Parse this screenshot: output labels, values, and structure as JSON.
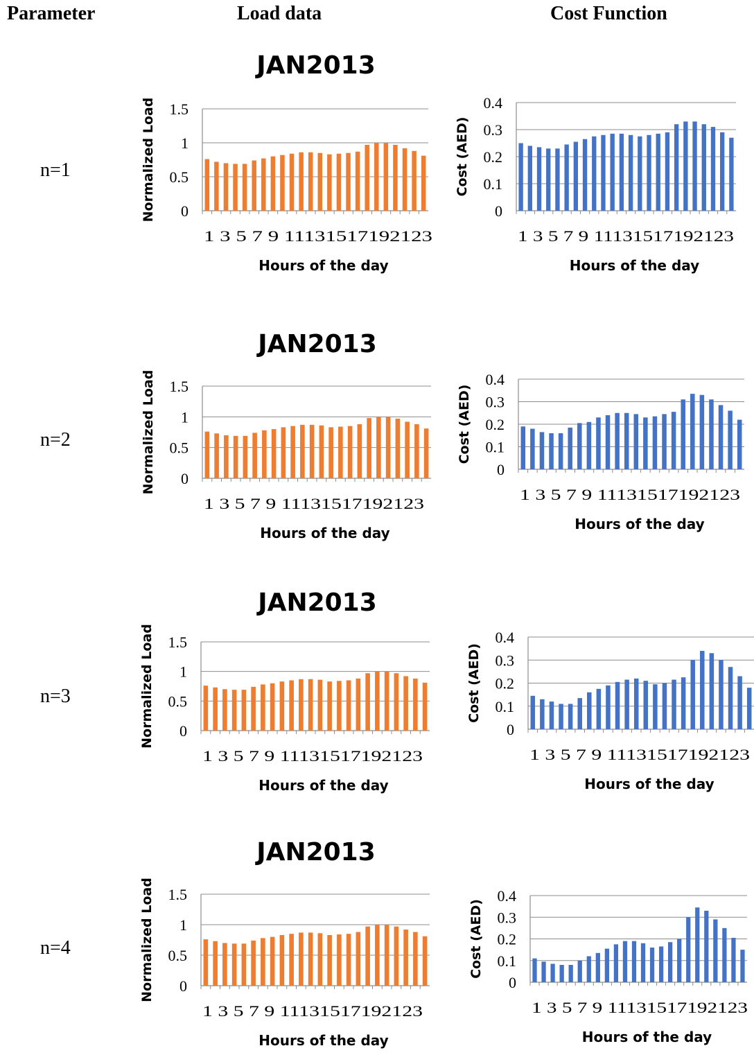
{
  "headers": {
    "parameter": "Parameter",
    "load": "Load data",
    "cost": "Cost Function"
  },
  "rows": [
    {
      "param": "n=1",
      "title": "JAN2013"
    },
    {
      "param": "n=2",
      "title": "JAN2013"
    },
    {
      "param": "n=3",
      "title": "JAN2013"
    },
    {
      "param": "n=4",
      "title": "JAN2013"
    }
  ],
  "colors": {
    "load_bar": "#ED7D31",
    "cost_bar": "#4472C4",
    "grid": "#8C8C8C"
  },
  "chart_data": [
    {
      "type": "bar",
      "name": "load-n1",
      "categories": [
        "1",
        "2",
        "3",
        "4",
        "5",
        "6",
        "7",
        "8",
        "9",
        "10",
        "11",
        "12",
        "13",
        "14",
        "15",
        "16",
        "17",
        "18",
        "19",
        "20",
        "21",
        "22",
        "23",
        "24"
      ],
      "tick_labels": [
        "1",
        "3",
        "5",
        "7",
        "9",
        "11",
        "13",
        "15",
        "17",
        "19",
        "21",
        "23"
      ],
      "values": [
        0.76,
        0.72,
        0.7,
        0.69,
        0.69,
        0.74,
        0.77,
        0.8,
        0.82,
        0.84,
        0.86,
        0.86,
        0.85,
        0.83,
        0.84,
        0.85,
        0.87,
        0.97,
        1.0,
        1.0,
        0.97,
        0.92,
        0.88,
        0.81
      ],
      "xlabel": "Hours of the day",
      "ylabel": "Normalized Load",
      "ylim": [
        0,
        1.5
      ],
      "yticks": [
        "0",
        "0.5",
        "1",
        "1.5"
      ],
      "grid": true
    },
    {
      "type": "bar",
      "name": "cost-n1",
      "categories": [
        "1",
        "2",
        "3",
        "4",
        "5",
        "6",
        "7",
        "8",
        "9",
        "10",
        "11",
        "12",
        "13",
        "14",
        "15",
        "16",
        "17",
        "18",
        "19",
        "20",
        "21",
        "22",
        "23",
        "24"
      ],
      "tick_labels": [
        "1",
        "3",
        "5",
        "7",
        "9",
        "11",
        "13",
        "15",
        "17",
        "19",
        "21",
        "23"
      ],
      "values": [
        0.25,
        0.24,
        0.235,
        0.23,
        0.23,
        0.245,
        0.255,
        0.265,
        0.275,
        0.28,
        0.285,
        0.285,
        0.28,
        0.275,
        0.28,
        0.285,
        0.29,
        0.32,
        0.33,
        0.33,
        0.32,
        0.31,
        0.29,
        0.27
      ],
      "xlabel": "Hours of the day",
      "ylabel": "Cost (AED)",
      "ylim": [
        0,
        0.4
      ],
      "yticks": [
        "0",
        "0.1",
        "0.2",
        "0.3",
        "0.4"
      ],
      "grid": true
    },
    {
      "type": "bar",
      "name": "load-n2",
      "categories": [
        "1",
        "2",
        "3",
        "4",
        "5",
        "6",
        "7",
        "8",
        "9",
        "10",
        "11",
        "12",
        "13",
        "14",
        "15",
        "16",
        "17",
        "18",
        "19",
        "20",
        "21",
        "22",
        "23",
        "24"
      ],
      "tick_labels": [
        "1",
        "3",
        "5",
        "7",
        "9",
        "11",
        "13",
        "15",
        "17",
        "19",
        "21",
        "23"
      ],
      "values": [
        0.76,
        0.73,
        0.7,
        0.69,
        0.69,
        0.74,
        0.78,
        0.8,
        0.83,
        0.85,
        0.87,
        0.87,
        0.86,
        0.83,
        0.84,
        0.85,
        0.88,
        0.98,
        1.0,
        1.0,
        0.97,
        0.92,
        0.88,
        0.81
      ],
      "xlabel": "Hours of the day",
      "ylabel": "Normalized Load",
      "ylim": [
        0,
        1.5
      ],
      "yticks": [
        "0",
        "0.5",
        "1",
        "1.5"
      ],
      "grid": true
    },
    {
      "type": "bar",
      "name": "cost-n2",
      "categories": [
        "1",
        "2",
        "3",
        "4",
        "5",
        "6",
        "7",
        "8",
        "9",
        "10",
        "11",
        "12",
        "13",
        "14",
        "15",
        "16",
        "17",
        "18",
        "19",
        "20",
        "21",
        "22",
        "23",
        "24"
      ],
      "tick_labels": [
        "1",
        "3",
        "5",
        "7",
        "9",
        "11",
        "13",
        "15",
        "17",
        "19",
        "21",
        "23"
      ],
      "values": [
        0.19,
        0.18,
        0.165,
        0.16,
        0.16,
        0.185,
        0.205,
        0.21,
        0.23,
        0.24,
        0.25,
        0.25,
        0.245,
        0.23,
        0.235,
        0.245,
        0.255,
        0.31,
        0.335,
        0.33,
        0.31,
        0.285,
        0.26,
        0.22
      ],
      "xlabel": "Hours of the day",
      "ylabel": "Cost (AED)",
      "ylim": [
        0,
        0.4
      ],
      "yticks": [
        "0",
        "0.1",
        "0.2",
        "0.3",
        "0.4"
      ],
      "grid": true
    },
    {
      "type": "bar",
      "name": "load-n3",
      "categories": [
        "1",
        "2",
        "3",
        "4",
        "5",
        "6",
        "7",
        "8",
        "9",
        "10",
        "11",
        "12",
        "13",
        "14",
        "15",
        "16",
        "17",
        "18",
        "19",
        "20",
        "21",
        "22",
        "23",
        "24"
      ],
      "tick_labels": [
        "1",
        "3",
        "5",
        "7",
        "9",
        "11",
        "13",
        "15",
        "17",
        "19",
        "21",
        "23"
      ],
      "values": [
        0.76,
        0.73,
        0.7,
        0.69,
        0.69,
        0.74,
        0.78,
        0.8,
        0.83,
        0.85,
        0.87,
        0.87,
        0.86,
        0.83,
        0.84,
        0.85,
        0.88,
        0.97,
        1.0,
        1.0,
        0.97,
        0.92,
        0.88,
        0.81
      ],
      "xlabel": "Hours of the day",
      "ylabel": "Normalized Load",
      "ylim": [
        0,
        1.5
      ],
      "yticks": [
        "0",
        "0.5",
        "1",
        "1.5"
      ],
      "grid": true
    },
    {
      "type": "bar",
      "name": "cost-n3",
      "categories": [
        "1",
        "2",
        "3",
        "4",
        "5",
        "6",
        "7",
        "8",
        "9",
        "10",
        "11",
        "12",
        "13",
        "14",
        "15",
        "16",
        "17",
        "18",
        "19",
        "20",
        "21",
        "22",
        "23",
        "24"
      ],
      "tick_labels": [
        "1",
        "3",
        "5",
        "7",
        "9",
        "11",
        "13",
        "15",
        "17",
        "19",
        "21",
        "23"
      ],
      "values": [
        0.145,
        0.13,
        0.12,
        0.11,
        0.11,
        0.135,
        0.16,
        0.175,
        0.19,
        0.205,
        0.215,
        0.22,
        0.21,
        0.195,
        0.2,
        0.215,
        0.225,
        0.3,
        0.34,
        0.33,
        0.3,
        0.27,
        0.23,
        0.18
      ],
      "xlabel": "Hours of the day",
      "ylabel": "Cost (AED)",
      "ylim": [
        0,
        0.4
      ],
      "yticks": [
        "0",
        "0.1",
        "0.2",
        "0.3",
        "0.4"
      ],
      "grid": true
    },
    {
      "type": "bar",
      "name": "load-n4",
      "categories": [
        "1",
        "2",
        "3",
        "4",
        "5",
        "6",
        "7",
        "8",
        "9",
        "10",
        "11",
        "12",
        "13",
        "14",
        "15",
        "16",
        "17",
        "18",
        "19",
        "20",
        "21",
        "22",
        "23",
        "24"
      ],
      "tick_labels": [
        "1",
        "3",
        "5",
        "7",
        "9",
        "11",
        "13",
        "15",
        "17",
        "19",
        "21",
        "23"
      ],
      "values": [
        0.76,
        0.73,
        0.7,
        0.69,
        0.69,
        0.74,
        0.78,
        0.8,
        0.83,
        0.85,
        0.87,
        0.87,
        0.86,
        0.83,
        0.84,
        0.85,
        0.88,
        0.97,
        1.0,
        1.0,
        0.97,
        0.92,
        0.88,
        0.81
      ],
      "xlabel": "Hours of the day",
      "ylabel": "Normalized Load",
      "ylim": [
        0,
        1.5
      ],
      "yticks": [
        "0",
        "0.5",
        "1",
        "1.5"
      ],
      "grid": true
    },
    {
      "type": "bar",
      "name": "cost-n4",
      "categories": [
        "1",
        "2",
        "3",
        "4",
        "5",
        "6",
        "7",
        "8",
        "9",
        "10",
        "11",
        "12",
        "13",
        "14",
        "15",
        "16",
        "17",
        "18",
        "19",
        "20",
        "21",
        "22",
        "23",
        "24"
      ],
      "tick_labels": [
        "1",
        "3",
        "5",
        "7",
        "9",
        "11",
        "13",
        "15",
        "17",
        "19",
        "21",
        "23"
      ],
      "values": [
        0.11,
        0.095,
        0.085,
        0.08,
        0.08,
        0.1,
        0.12,
        0.135,
        0.155,
        0.175,
        0.19,
        0.19,
        0.18,
        0.16,
        0.165,
        0.185,
        0.2,
        0.3,
        0.345,
        0.33,
        0.29,
        0.25,
        0.205,
        0.15
      ],
      "xlabel": "Hours of the day",
      "ylabel": "Cost (AED)",
      "ylim": [
        0,
        0.4
      ],
      "yticks": [
        "0",
        "0.1",
        "0.2",
        "0.3",
        "0.4"
      ],
      "grid": true
    }
  ]
}
